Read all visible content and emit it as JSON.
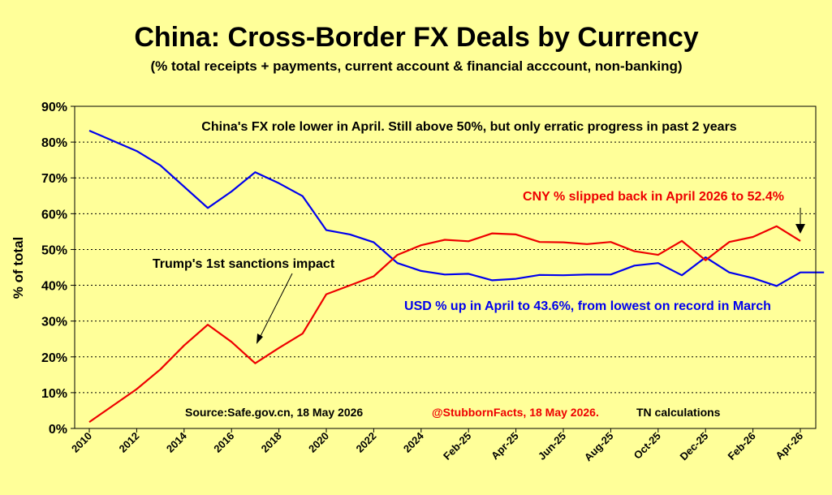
{
  "colors": {
    "background": "#ffff99",
    "usd": "#0000ee",
    "cny": "#ee0000",
    "text": "#000000"
  },
  "chart_data": {
    "type": "line",
    "title": "China: Cross-Border FX Deals by Currency",
    "subtitle": "(% total receipts + payments, current account & financial acccount, non-banking)",
    "ylabel": "% of total",
    "xlabel": "",
    "ylim": [
      0,
      90
    ],
    "grid": true,
    "y_ticks": [
      "0%",
      "10%",
      "20%",
      "30%",
      "40%",
      "50%",
      "60%",
      "70%",
      "80%",
      "90%"
    ],
    "x_tick_labels": [
      "2010",
      "2012",
      "2014",
      "2016",
      "2018",
      "2020",
      "2022",
      "2024",
      "Feb-25",
      "Apr-25",
      "Jun-25",
      "Aug-25",
      "Oct-25",
      "Dec-25",
      "Feb-26",
      "Apr-26"
    ],
    "x_tick_positions": [
      0,
      2,
      4,
      6,
      8,
      10,
      12,
      14,
      16,
      18,
      20,
      22,
      24,
      26,
      28,
      30
    ],
    "series": [
      {
        "name": "USD",
        "color": "#0000ee",
        "x": [
          0,
          2,
          3,
          5,
          6,
          7,
          8,
          9,
          10,
          11,
          12,
          13,
          14,
          15,
          16,
          17,
          18,
          19,
          20,
          21,
          22,
          23,
          24,
          25,
          26,
          27,
          28,
          29,
          30,
          31
        ],
        "values": [
          83.2,
          77.5,
          73.5,
          61.6,
          66.2,
          71.6,
          68.5,
          64.9,
          55.4,
          54.2,
          52.0,
          46.2,
          44.0,
          43.0,
          43.2,
          41.4,
          41.8,
          42.9,
          42.8,
          43.0,
          43.0,
          45.5,
          46.2,
          42.8,
          47.8,
          43.6,
          42.0,
          39.8,
          43.6,
          43.6
        ]
      },
      {
        "name": "CNY",
        "color": "#ee0000",
        "x": [
          0,
          2,
          3,
          4,
          5,
          6,
          7,
          8,
          9,
          10,
          11,
          12,
          13,
          14,
          15,
          16,
          17,
          18,
          19,
          20,
          21,
          22,
          23,
          24,
          25,
          26,
          27,
          28,
          29,
          30
        ],
        "values": [
          1.8,
          11.0,
          16.5,
          23.2,
          29.0,
          24.2,
          18.2,
          22.5,
          26.5,
          37.5,
          40.0,
          42.5,
          48.5,
          51.2,
          52.7,
          52.3,
          54.5,
          54.2,
          52.1,
          52.0,
          51.5,
          52.1,
          49.5,
          48.5,
          52.4,
          47.0,
          52.1,
          53.5,
          56.5,
          52.4
        ]
      }
    ],
    "annotations": [
      "China's FX role lower in April. Still above 50%, but only erratic progress in past 2 years",
      "CNY % slipped back in April 2026 to 52.4%",
      "Trump's 1st sanctions impact",
      "USD % up in April to 43.6%, from lowest on record in March"
    ],
    "source": "Source:Safe.gov.cn, 18 May 2026",
    "credit": "@StubbornFacts, 18 May 2026.",
    "credit_note": "TN calculations"
  }
}
